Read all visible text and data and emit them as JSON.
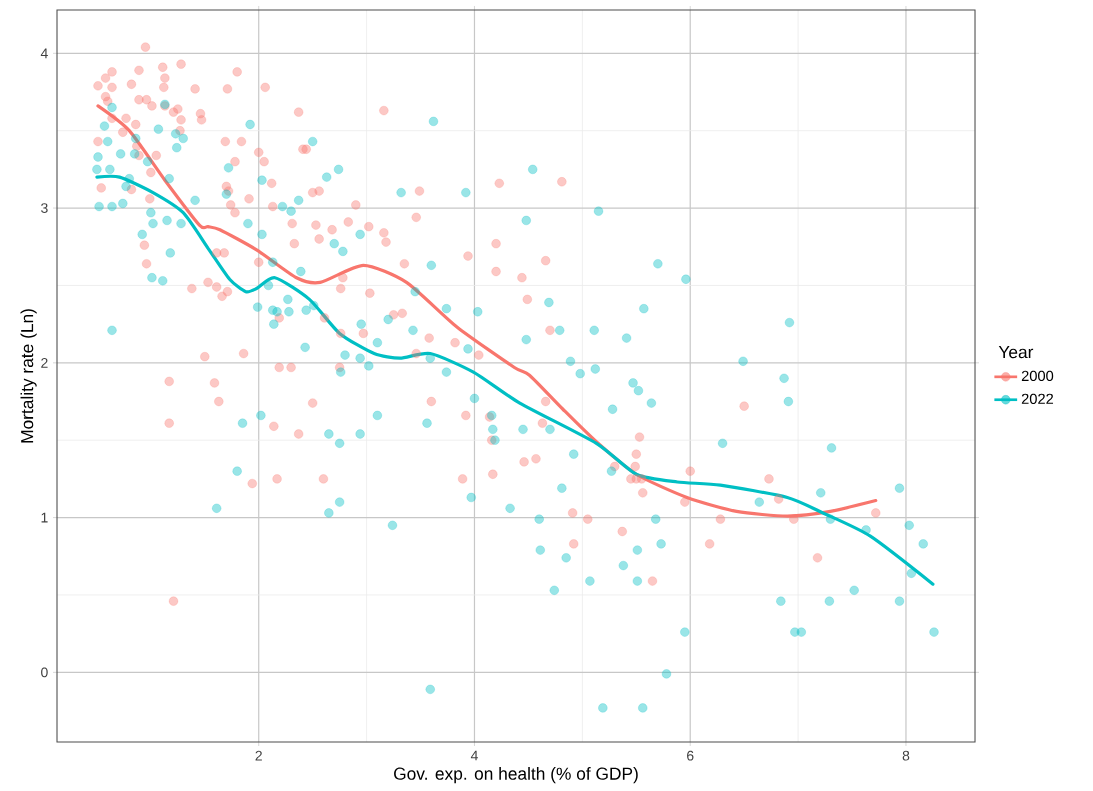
{
  "chart_data": {
    "type": "scatter",
    "xlabel": "Gov. exp. on health (% of GDP)",
    "ylabel": "Mortality rate (Ln)",
    "legend_title": "Year",
    "xlim": [
      0.13,
      8.64
    ],
    "ylim": [
      -0.45,
      4.28
    ],
    "xticks": [
      2,
      4,
      6,
      8
    ],
    "yticks": [
      0,
      1,
      2,
      3,
      4
    ],
    "grid": true,
    "legend": "right",
    "line_style": "solid",
    "series": [
      {
        "name": "2000",
        "marker": "circle",
        "color": "#f8766d",
        "x": [
          0.95,
          0.51,
          0.58,
          0.64,
          0.64,
          0.89,
          0.82,
          1.11,
          1.13,
          1.12,
          1.28,
          1.41,
          1.71,
          1.8,
          2.06,
          0.58,
          0.6,
          0.89,
          0.96,
          1.01,
          1.13,
          1.21,
          1.25,
          1.28,
          1.46,
          1.47,
          0.77,
          0.64,
          0.86,
          0.74,
          1.27,
          0.51,
          0.87,
          0.89,
          1.05,
          1.0,
          0.54,
          0.82,
          0.99,
          0.94,
          0.96,
          1.69,
          1.84,
          1.78,
          2.0,
          2.05,
          2.12,
          2.37,
          2.41,
          2.44,
          3.16,
          1.7,
          1.72,
          1.91,
          1.74,
          1.78,
          2.13,
          2.5,
          2.56,
          2.9,
          2.31,
          2.33,
          2.53,
          2.56,
          2.68,
          2.83,
          3.02,
          3.16,
          3.18,
          3.49,
          3.46,
          4.23,
          4.2,
          3.94,
          4.2,
          3.35,
          2.0,
          1.61,
          1.68,
          1.38,
          1.53,
          1.61,
          1.66,
          1.71,
          2.78,
          2.76,
          3.03,
          3.25,
          3.33,
          2.61,
          2.97,
          2.76,
          2.19,
          3.58,
          3.82,
          4.04,
          3.46,
          1.86,
          1.5,
          2.19,
          2.3,
          2.75,
          1.17,
          1.59,
          1.63,
          1.17,
          2.5,
          2.14,
          2.37,
          3.6,
          3.92,
          4.14,
          4.16,
          3.89,
          4.17,
          2.17,
          2.6,
          1.94,
          1.21,
          4.81,
          4.66,
          4.44,
          4.49,
          4.7,
          4.66,
          4.63,
          4.46,
          4.57,
          5.53,
          5.5,
          5.49,
          5.3,
          5.45,
          5.5,
          5.55,
          5.56,
          6.0,
          5.95,
          6.5,
          6.73,
          6.82,
          4.91,
          5.05,
          6.28,
          6.96,
          7.72,
          5.37,
          4.92,
          6.18,
          7.18,
          5.65
        ],
        "values": [
          4.04,
          3.79,
          3.84,
          3.88,
          3.78,
          3.89,
          3.8,
          3.91,
          3.84,
          3.78,
          3.93,
          3.77,
          3.77,
          3.88,
          3.78,
          3.72,
          3.69,
          3.7,
          3.7,
          3.66,
          3.66,
          3.62,
          3.64,
          3.57,
          3.61,
          3.57,
          3.58,
          3.58,
          3.54,
          3.49,
          3.5,
          3.43,
          3.4,
          3.34,
          3.34,
          3.23,
          3.13,
          3.12,
          3.06,
          2.76,
          2.64,
          3.43,
          3.43,
          3.3,
          3.36,
          3.3,
          3.16,
          3.62,
          3.38,
          3.38,
          3.63,
          3.14,
          3.11,
          3.06,
          3.02,
          2.97,
          3.01,
          3.1,
          3.11,
          3.02,
          2.9,
          2.77,
          2.89,
          2.8,
          2.86,
          2.91,
          2.88,
          2.84,
          2.78,
          3.11,
          2.94,
          3.16,
          2.77,
          2.69,
          2.59,
          2.64,
          2.65,
          2.71,
          2.71,
          2.48,
          2.52,
          2.49,
          2.43,
          2.46,
          2.55,
          2.48,
          2.45,
          2.31,
          2.32,
          2.29,
          2.19,
          2.19,
          2.29,
          2.16,
          2.13,
          2.05,
          2.06,
          2.06,
          2.04,
          1.97,
          1.97,
          1.97,
          1.88,
          1.87,
          1.75,
          1.61,
          1.74,
          1.59,
          1.54,
          1.75,
          1.66,
          1.65,
          1.5,
          1.25,
          1.28,
          1.25,
          1.25,
          1.22,
          0.46,
          3.17,
          2.66,
          2.55,
          2.41,
          2.21,
          1.75,
          1.61,
          1.36,
          1.38,
          1.52,
          1.41,
          1.33,
          1.33,
          1.25,
          1.25,
          1.25,
          1.16,
          1.3,
          1.1,
          1.72,
          1.25,
          1.12,
          1.03,
          0.99,
          0.99,
          0.99,
          1.03,
          0.91,
          0.83,
          0.83,
          0.74,
          0.59
        ]
      },
      {
        "name": "2022",
        "marker": "circle",
        "color": "#00bfc4",
        "x": [
          0.64,
          0.57,
          0.6,
          0.51,
          0.5,
          0.62,
          0.72,
          0.86,
          0.85,
          0.97,
          0.8,
          0.77,
          0.52,
          0.64,
          0.74,
          1.13,
          1.07,
          1.23,
          1.3,
          1.24,
          1.17,
          1.0,
          1.02,
          1.15,
          1.28,
          0.92,
          1.18,
          1.01,
          1.11,
          0.64,
          1.41,
          1.72,
          1.7,
          1.92,
          2.03,
          1.9,
          2.03,
          2.13,
          2.09,
          2.22,
          2.3,
          2.37,
          2.5,
          2.63,
          2.74,
          2.94,
          2.7,
          2.78,
          2.39,
          2.27,
          1.99,
          2.13,
          2.17,
          2.14,
          2.28,
          2.44,
          2.51,
          2.95,
          3.1,
          3.2,
          3.32,
          3.92,
          3.62,
          3.6,
          3.43,
          3.74,
          4.03,
          3.94,
          2.43,
          2.8,
          2.94,
          3.02,
          2.76,
          3.59,
          3.74,
          3.45,
          4.0,
          4.16,
          4.17,
          4.19,
          3.56,
          3.1,
          2.94,
          2.65,
          2.75,
          2.02,
          1.85,
          1.8,
          1.61,
          2.75,
          2.65,
          3.24,
          3.97,
          4.33,
          3.59,
          4.54,
          5.15,
          4.48,
          5.7,
          5.96,
          4.69,
          5.57,
          4.79,
          5.11,
          4.48,
          5.41,
          6.92,
          4.89,
          4.98,
          5.12,
          6.49,
          6.87,
          5.47,
          5.52,
          5.64,
          5.28,
          6.91,
          4.45,
          4.7,
          6.3,
          7.31,
          4.92,
          5.27,
          4.81,
          4.6,
          5.68,
          6.64,
          7.21,
          7.94,
          7.3,
          7.63,
          8.03,
          8.16,
          4.61,
          4.85,
          5.51,
          5.73,
          5.38,
          5.07,
          5.51,
          4.74,
          6.84,
          7.29,
          7.52,
          7.94,
          8.05,
          5.95,
          6.97,
          7.03,
          8.26,
          5.78,
          5.19,
          5.56
        ],
        "values": [
          3.65,
          3.53,
          3.43,
          3.33,
          3.25,
          3.25,
          3.35,
          3.45,
          3.35,
          3.3,
          3.19,
          3.14,
          3.01,
          3.01,
          3.03,
          3.67,
          3.51,
          3.48,
          3.45,
          3.39,
          3.19,
          2.97,
          2.9,
          2.92,
          2.9,
          2.83,
          2.71,
          2.55,
          2.53,
          2.21,
          3.05,
          3.26,
          3.09,
          3.54,
          3.18,
          2.9,
          2.83,
          2.65,
          2.5,
          3.01,
          2.98,
          3.05,
          3.43,
          3.2,
          3.25,
          2.83,
          2.77,
          2.72,
          2.59,
          2.41,
          2.36,
          2.34,
          2.33,
          2.25,
          2.33,
          2.34,
          2.37,
          2.25,
          2.13,
          2.28,
          3.1,
          3.1,
          3.56,
          2.63,
          2.21,
          2.35,
          2.33,
          2.09,
          2.1,
          2.05,
          2.03,
          1.98,
          1.94,
          2.03,
          1.94,
          2.46,
          1.77,
          1.66,
          1.57,
          1.5,
          1.61,
          1.66,
          1.54,
          1.54,
          1.48,
          1.66,
          1.61,
          1.3,
          1.06,
          1.1,
          1.03,
          0.95,
          1.13,
          1.06,
          -0.11,
          3.25,
          2.98,
          2.92,
          2.64,
          2.54,
          2.39,
          2.35,
          2.21,
          2.21,
          2.15,
          2.16,
          2.26,
          2.01,
          1.93,
          1.96,
          2.01,
          1.9,
          1.87,
          1.82,
          1.74,
          1.7,
          1.75,
          1.57,
          1.57,
          1.48,
          1.45,
          1.41,
          1.3,
          1.19,
          0.99,
          0.99,
          1.1,
          1.16,
          1.19,
          0.99,
          0.92,
          0.95,
          0.83,
          0.79,
          0.74,
          0.79,
          0.83,
          0.69,
          0.59,
          0.59,
          0.53,
          0.46,
          0.46,
          0.53,
          0.46,
          0.64,
          0.26,
          0.26,
          0.26,
          0.26,
          -0.01,
          -0.23,
          -0.23
        ]
      },
      {
        "type": "line",
        "marker": "none",
        "color": "#f8766d",
        "x": [
          0.51,
          0.8,
          1.13,
          1.45,
          1.53,
          1.64,
          1.98,
          2.35,
          2.57,
          2.97,
          3.37,
          3.84,
          4.37,
          4.51,
          4.82,
          5.13,
          5.5,
          5.97,
          6.43,
          6.9,
          7.3,
          7.72
        ],
        "values": [
          3.66,
          3.5,
          3.18,
          2.89,
          2.88,
          2.86,
          2.73,
          2.55,
          2.52,
          2.63,
          2.52,
          2.23,
          1.97,
          1.92,
          1.7,
          1.49,
          1.28,
          1.13,
          1.04,
          1.01,
          1.04,
          1.11
        ]
      },
      {
        "type": "line",
        "marker": "none",
        "color": "#00bfc4",
        "x": [
          0.5,
          0.71,
          1.02,
          1.3,
          1.54,
          1.73,
          1.88,
          1.98,
          2.15,
          2.47,
          2.75,
          3.07,
          3.31,
          3.59,
          3.99,
          4.42,
          5.13,
          5.5,
          5.88,
          6.28,
          6.9,
          7.23,
          7.67,
          8.25
        ],
        "values": [
          3.2,
          3.2,
          3.1,
          2.97,
          2.73,
          2.54,
          2.46,
          2.48,
          2.55,
          2.41,
          2.19,
          2.06,
          2.03,
          2.06,
          1.94,
          1.74,
          1.48,
          1.28,
          1.23,
          1.21,
          1.13,
          1.03,
          0.88,
          0.57
        ]
      }
    ]
  }
}
